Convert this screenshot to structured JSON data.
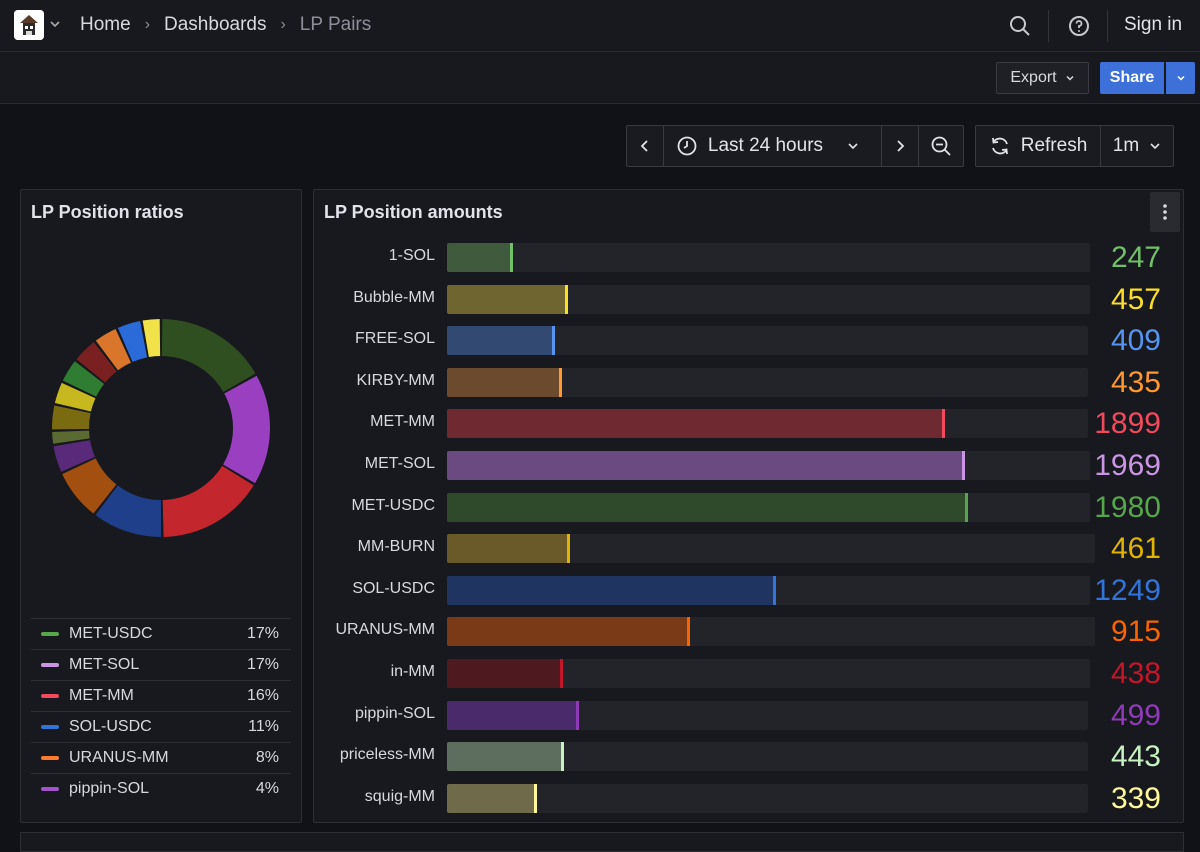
{
  "breadcrumb": {
    "items": [
      "Home",
      "Dashboards",
      "LP Pairs"
    ]
  },
  "topbar": {
    "signin_label": "Sign in"
  },
  "toolbar": {
    "export_label": "Export",
    "share_label": "Share"
  },
  "timepicker": {
    "range_label": "Last 24 hours",
    "refresh_label": "Refresh",
    "interval_label": "1m"
  },
  "colors": {
    "accent": "#3d71d9",
    "background": "#111217",
    "panel": "#18191e"
  },
  "icons": [
    "app-logo",
    "chevron-down-icon",
    "search-icon",
    "help-icon",
    "clock-icon",
    "chevron-left-icon",
    "chevron-right-icon",
    "zoom-out-icon",
    "refresh-icon",
    "kebab-menu-icon"
  ],
  "ratios_panel": {
    "title": "LP Position ratios",
    "legend": [
      {
        "name": "MET-USDC",
        "pct": "17%",
        "color": "#56a64b"
      },
      {
        "name": "MET-SOL",
        "pct": "17%",
        "color": "#ca95e5"
      },
      {
        "name": "MET-MM",
        "pct": "16%",
        "color": "#f2495c"
      },
      {
        "name": "SOL-USDC",
        "pct": "11%",
        "color": "#3274d9"
      },
      {
        "name": "URANUS-MM",
        "pct": "8%",
        "color": "#ff7a2d"
      },
      {
        "name": "pippin-SOL",
        "pct": "4%",
        "color": "#a352cc"
      }
    ]
  },
  "amounts_panel": {
    "title": "LP Position amounts"
  },
  "chart_data": [
    {
      "type": "pie",
      "title": "LP Position ratios",
      "categories": [
        "MET-USDC",
        "MET-SOL",
        "MET-MM",
        "SOL-USDC",
        "URANUS-MM",
        "pippin-SOL",
        "1-SOL",
        "Bubble-MM",
        "FREE-SOL",
        "KIRBY-MM",
        "MM-BURN",
        "in-MM",
        "priceless-MM",
        "squig-MM"
      ],
      "values": [
        1980,
        1969,
        1899,
        1249,
        915,
        499,
        247,
        457,
        409,
        435,
        461,
        438,
        443,
        339
      ],
      "colors": [
        "#2f4f20",
        "#9a3fc0",
        "#c4262e",
        "#1f3f8a",
        "#a34f10",
        "#5a2a7a",
        "#5a6a30",
        "#7a6a10",
        "#c8b820",
        "#2e7d32",
        "#7a2020",
        "#d9762b",
        "#2a6ad9",
        "#f2e24a"
      ],
      "donut": true,
      "legend": "bottom"
    },
    {
      "type": "bar",
      "title": "LP Position amounts",
      "orientation": "horizontal",
      "categories": [
        "1-SOL",
        "Bubble-MM",
        "FREE-SOL",
        "KIRBY-MM",
        "MET-MM",
        "MET-SOL",
        "MET-USDC",
        "MM-BURN",
        "SOL-USDC",
        "URANUS-MM",
        "in-MM",
        "pippin-SOL",
        "priceless-MM",
        "squig-MM"
      ],
      "values": [
        247,
        457,
        409,
        435,
        1899,
        1969,
        1980,
        461,
        1249,
        915,
        438,
        499,
        443,
        339
      ],
      "value_colors": [
        "#73bf69",
        "#fade2a",
        "#5794f2",
        "#ff9830",
        "#f2495c",
        "#ca95e5",
        "#56a64b",
        "#e0b400",
        "#3274d9",
        "#fa6400",
        "#c4162a",
        "#8f3bb8",
        "#c8f2c2",
        "#fff899"
      ],
      "fill_colors": [
        "#3f5a3c",
        "#6e6530",
        "#324a72",
        "#6b4a2e",
        "#6e2a30",
        "#6a4a80",
        "#2f4a2a",
        "#6a5a2a",
        "#1f3460",
        "#7a3a18",
        "#4e1a20",
        "#4a2a6a",
        "#5e6e5e",
        "#6e6a4a"
      ],
      "xlim": [
        0,
        2450
      ]
    }
  ]
}
